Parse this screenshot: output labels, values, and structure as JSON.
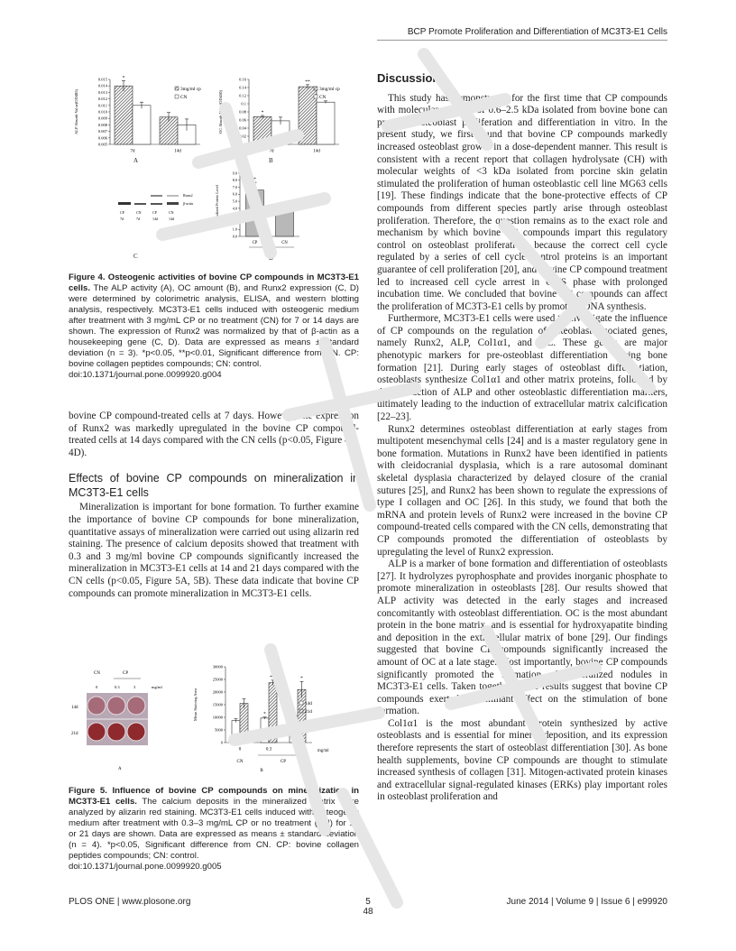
{
  "header": {
    "running_title": "BCP Promote Proliferation and Differentiation of MC3T3-E1 Cells"
  },
  "figure4": {
    "panel_labels": [
      "A",
      "B",
      "C",
      "D"
    ],
    "blot": {
      "bands": [
        "Runx2",
        "β-actin"
      ],
      "lanes": [
        "CP",
        "CN",
        "CP",
        "CN"
      ],
      "days": [
        "7d",
        "7d",
        "14d",
        "14d"
      ]
    },
    "caption_title": "Figure 4. Osteogenic activities of bovine CP compounds in MC3T3-E1 cells.",
    "caption_body": " The ALP activity (A), OC amount (B), and Runx2 expression (C, D) were determined by colorimetric analysis, ELISA, and western blotting analysis, respectively. MC3T3-E1 cells induced with osteogenic medium after treatment with 3 mg/mL CP or no treatment (CN) for 7 or 14 days are shown. The expression of Runx2 was normalized by that of β-actin as a housekeeping gene (C, D). Data are expressed as means ± standard deviation (n = 3). *p<0.05, **p<0.01, Significant difference from CN. CP: bovine collagen peptides compounds; CN: control.",
    "doi": "doi:10.1371/journal.pone.0099920.g004"
  },
  "figure5": {
    "panel_labels": [
      "A",
      "B"
    ],
    "plate": {
      "groups": [
        "CN",
        "CP"
      ],
      "doses": [
        "0",
        "0.3",
        "3"
      ],
      "unit": "mg/ml",
      "rows": [
        "14d",
        "21d"
      ]
    },
    "caption_title": "Figure 5. Influence of bovine CP compounds on mineralization in MC3T3-E1 cells.",
    "caption_body": " The calcium deposits in the mineralized matrix were analyzed by alizarin red staining. MC3T3-E1 cells induced with osteogenic medium after treatment with 0.3–3 mg/mL CP or no treatment (CN) for 14 or 21 days are shown. Data are expressed as means ± standard deviation (n = 4). *p<0.05, Significant difference from CN. CP: bovine collagen peptides compounds; CN: control.",
    "doi": "doi:10.1371/journal.pone.0099920.g005"
  },
  "chart_data": [
    {
      "id": "fig4A",
      "type": "bar",
      "ylabel": "ALP Absorb Value(OD405)",
      "categories": [
        "7d",
        "14d"
      ],
      "ylim": [
        0.005,
        0.015
      ],
      "yticks": [
        "0.005",
        "0.006",
        "0.007",
        "0.008",
        "0.009",
        "0.010",
        "0.011",
        "0.012",
        "0.013",
        "0.014",
        "0.015"
      ],
      "series": [
        {
          "name": "3mg/ml cp",
          "values": [
            0.014,
            0.0092
          ],
          "errors": [
            0.0008,
            0.0007
          ],
          "pattern": "hatch"
        },
        {
          "name": "CN",
          "values": [
            0.011,
            0.008
          ],
          "errors": [
            0.0005,
            0.0009
          ],
          "pattern": "white"
        }
      ],
      "annotations": [
        {
          "category": "7d",
          "series": 0,
          "text": "*"
        }
      ],
      "legend": "right"
    },
    {
      "id": "fig4B",
      "type": "bar",
      "ylabel": "OC Absorb Value(OD450)",
      "categories": [
        "7d",
        "14d"
      ],
      "ylim": [
        0,
        0.16
      ],
      "yticks": [
        "0",
        "0.02",
        "0.04",
        "0.06",
        "0.08",
        "0.1",
        "0.12",
        "0.14",
        "0.16"
      ],
      "series": [
        {
          "name": "3mg/ml cp",
          "values": [
            0.068,
            0.142
          ],
          "errors": [
            0.003,
            0.005
          ],
          "pattern": "hatch"
        },
        {
          "name": "CN",
          "values": [
            0.058,
            0.104
          ],
          "errors": [
            0.009,
            0.003
          ],
          "pattern": "white"
        }
      ],
      "annotations": [
        {
          "category": "7d",
          "series": 0,
          "text": "*"
        },
        {
          "category": "14d",
          "series": 0,
          "text": "**"
        }
      ],
      "legend": "right"
    },
    {
      "id": "fig4D",
      "type": "bar",
      "ylabel": "Normalized Protein Level",
      "categories": [
        "CP",
        "CN"
      ],
      "xgroup": "14d",
      "ylim": [
        0,
        9
      ],
      "yticks": [
        "0.0",
        "1.0",
        "2.0",
        "3.0",
        "4.0",
        "5.0",
        "6.0",
        "7.0",
        "8.0",
        "9.0"
      ],
      "series": [
        {
          "values": [
            6.6,
            3.6
          ],
          "errors": [
            1.1,
            0.4
          ],
          "pattern": "gray"
        }
      ],
      "annotations": [
        {
          "category": "CP",
          "series": 0,
          "text": "*"
        }
      ]
    },
    {
      "id": "fig5B",
      "type": "bar",
      "ylabel": "Mean Staining Area",
      "categories": [
        "0",
        "0.3",
        "3"
      ],
      "xunit": "mg/ml",
      "xgroups": [
        "CN",
        "CP"
      ],
      "ylim": [
        0,
        30000
      ],
      "yticks": [
        "0",
        "5000",
        "10000",
        "15000",
        "20000",
        "25000",
        "30000"
      ],
      "series": [
        {
          "name": "14d",
          "values": [
            8700,
            9700,
            10700
          ],
          "errors": [
            700,
            400,
            700
          ],
          "pattern": "white"
        },
        {
          "name": "21d",
          "values": [
            15500,
            23700,
            21000
          ],
          "errors": [
            1800,
            1000,
            3200
          ],
          "pattern": "hatch"
        }
      ],
      "annotations": [
        {
          "category": "0.3",
          "series": 0,
          "text": "*"
        },
        {
          "category": "3",
          "series": 0,
          "text": "*"
        },
        {
          "category": "0.3",
          "series": 1,
          "text": "* *"
        },
        {
          "category": "3",
          "series": 1,
          "text": "*"
        }
      ],
      "legend": "right"
    }
  ],
  "left_text": {
    "p_cont": "bovine CP compound-treated cells at 7 days. However, the expression of Runx2 was markedly upregulated in the bovine CP compound-treated cells at 14 days compared with the CN cells (p<0.05, Figure 4C, 4D).",
    "heading": "Effects of bovine CP compounds on mineralization in MC3T3-E1 cells",
    "p_min": "Mineralization is important for bone formation. To further examine the importance of bovine CP compounds for bone mineralization, quantitative assays of mineralization were carried out using alizarin red staining. The presence of calcium deposits showed that treatment with 0.3 and 3 mg/ml bovine CP compounds significantly increased the mineralization in MC3T3-E1 cells at 14 and 21 days compared with the CN cells (p<0.05, Figure 5A, 5B). These data indicate that bovine CP compounds can promote mineralization in MC3T3-E1 cells."
  },
  "right_text": {
    "heading": "Discussion",
    "paragraphs": [
      "This study has demonstrated for the first time that CP compounds with molecular weights of 0.6–2.5 kDa isolated from bovine bone can promote osteoblast proliferation and differentiation in vitro. In the present study, we first found that bovine CP compounds markedly increased osteoblast growth in a dose-dependent manner. This result is consistent with a recent report that collagen hydrolysate (CH) with molecular weights of <3 kDa isolated from porcine skin gelatin stimulated the proliferation of human osteoblastic cell line MG63 cells [19]. These findings indicate that the bone-protective effects of CP compounds from different species partly arise through osteoblast proliferation. Therefore, the question remains as to the exact role and mechanism by which bovine CP compounds impart this regulatory control on osteoblast proliferation, because the correct cell cycle regulated by a series of cell cycle control proteins is an important guarantee of cell proliferation [20], and bovine CP compound treatment led to increased cell cycle arrest in G2/S phase with prolonged incubation time. We concluded that bovine CP compounds can affect the proliferation of MC3T3-E1 cells by promoting DNA synthesis.",
      "Furthermore, MC3T3-E1 cells were used to investigate the influence of CP compounds on the regulation of osteoblast-associated genes, namely Runx2, ALP, Col1α1, and OC. These genes are major phenotypic markers for pre-osteoblast differentiation during bone formation [21]. During early stages of osteoblast differentiation, osteoblasts synthesize Col1α1 and other matrix proteins, followed by the production of ALP and other osteoblastic differentiation markers, ultimately leading to the induction of extracellular matrix calcification [22–23].",
      "Runx2 determines osteoblast differentiation at early stages from multipotent mesenchymal cells [24] and is a master regulatory gene in bone formation. Mutations in Runx2 have been identified in patients with cleidocranial dysplasia, which is a rare autosomal dominant skeletal dysplasia characterized by delayed closure of the cranial sutures [25], and Runx2 has been shown to regulate the expressions of type I collagen and OC [26]. In this study, we found that both the mRNA and protein levels of Runx2 were increased in the bovine CP compound-treated cells compared with the CN cells, demonstrating that CP compounds promoted the differentiation of osteoblasts by upregulating the level of Runx2 expression.",
      "ALP is a marker of bone formation and differentiation of osteoblasts [27]. It hydrolyzes pyrophosphate and provides inorganic phosphate to promote mineralization in osteoblasts [28]. Our results showed that ALP activity was detected in the early stages and increased concomitantly with osteoblast differentiation. OC is the most abundant protein in the bone matrix, and is essential for hydroxyapatite binding and deposition in the extracellular matrix of bone [29]. Our findings suggested that bovine CP compounds significantly increased the amount of OC at a late stage. Most importantly, bovine CP compounds significantly promoted the formation of mineralized nodules in MC3T3-E1 cells. Taken together, these results suggest that bovine CP compounds exerted a dominant effect on the stimulation of bone formation.",
      "Col1α1 is the most abundant protein synthesized by active osteoblasts and is essential for mineral deposition, and its expression therefore represents the start of osteoblast differentiation [30]. As bone health supplements, bovine CP compounds are thought to stimulate increased synthesis of collagen [31]. Mitogen-activated protein kinases and extracellular signal-regulated kinases (ERKs) play important roles in osteoblast proliferation and"
    ]
  },
  "footer": {
    "journal": "PLOS ONE | www.plosone.org",
    "page": "5",
    "page_sub": "48",
    "issue": "June 2014 | Volume 9 | Issue 6 | e99920"
  },
  "colors": {
    "text": "#222222",
    "plate_red": "#8e2a2e",
    "hatch": "#555555",
    "bar_gray": "#b8b8b8"
  }
}
